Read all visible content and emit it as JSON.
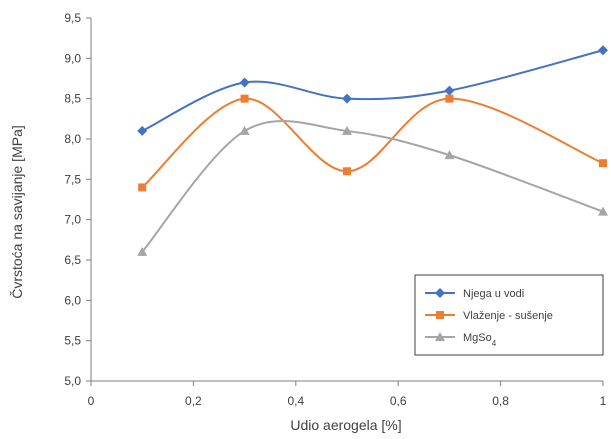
{
  "chart_data": {
    "type": "line",
    "smooth": true,
    "xlabel": "Udio aerogela [%]",
    "ylabel": "Čvrstoća na savijanje [MPa]",
    "xlim": [
      0,
      1
    ],
    "ylim": [
      5.0,
      9.5
    ],
    "x_ticks": [
      "0",
      "0,2",
      "0,4",
      "0,6",
      "0,8",
      "1"
    ],
    "y_ticks": [
      "5,0",
      "5,5",
      "6,0",
      "6,5",
      "7,0",
      "7,5",
      "8,0",
      "8,5",
      "9,0",
      "9,5"
    ],
    "grid": false,
    "legend_position": "bottom-right",
    "series": [
      {
        "name": "Njega u vodi",
        "color": "#4472C4",
        "marker": "diamond",
        "x": [
          0.1,
          0.3,
          0.5,
          0.7,
          1.0
        ],
        "y": [
          8.1,
          8.7,
          8.5,
          8.6,
          9.1
        ]
      },
      {
        "name": "Vlaženje - sušenje",
        "color": "#ED7D31",
        "marker": "square",
        "x": [
          0.1,
          0.3,
          0.5,
          0.7,
          1.0
        ],
        "y": [
          7.4,
          8.5,
          7.6,
          8.5,
          7.7
        ]
      },
      {
        "name": "MgSo",
        "name_subscript": "4",
        "color": "#A5A5A5",
        "marker": "triangle",
        "x": [
          0.1,
          0.3,
          0.5,
          0.7,
          1.0
        ],
        "y": [
          6.6,
          8.1,
          8.1,
          7.8,
          7.1
        ]
      }
    ]
  }
}
